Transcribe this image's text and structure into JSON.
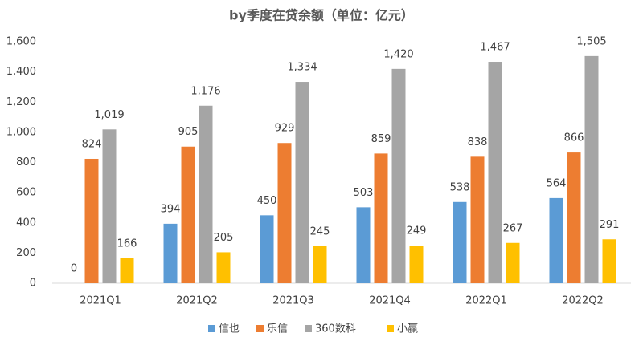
{
  "chart_data": {
    "type": "bar",
    "title": "by季度在贷余额（单位：亿元）",
    "categories": [
      "2021Q1",
      "2021Q2",
      "2021Q3",
      "2021Q4",
      "2022Q1",
      "2022Q2"
    ],
    "series": [
      {
        "name": "信也",
        "color": "#5b9bd5",
        "values": [
          0,
          394,
          450,
          503,
          538,
          564
        ]
      },
      {
        "name": "乐信",
        "color": "#ed7d31",
        "values": [
          824,
          905,
          929,
          859,
          838,
          866
        ]
      },
      {
        "name": "360数科",
        "color": "#a5a5a5",
        "values": [
          1019,
          1176,
          1334,
          1420,
          1467,
          1505
        ],
        "value_labels": [
          "1,019",
          "1,176",
          "1,334",
          "1,420",
          "1,467",
          "1,505"
        ]
      },
      {
        "name": "小赢",
        "color": "#ffc000",
        "values": [
          166,
          205,
          245,
          249,
          267,
          291
        ]
      }
    ],
    "ylim": [
      0,
      1600
    ],
    "yticks": [
      0,
      200,
      400,
      600,
      800,
      {
        "value": 1000,
        "label": "1,000"
      },
      {
        "value": 1200,
        "label": "1,200"
      },
      {
        "value": 1400,
        "label": "1,400"
      },
      {
        "value": 1600,
        "label": "1,600"
      }
    ],
    "grid": false,
    "legend": "bottom"
  }
}
